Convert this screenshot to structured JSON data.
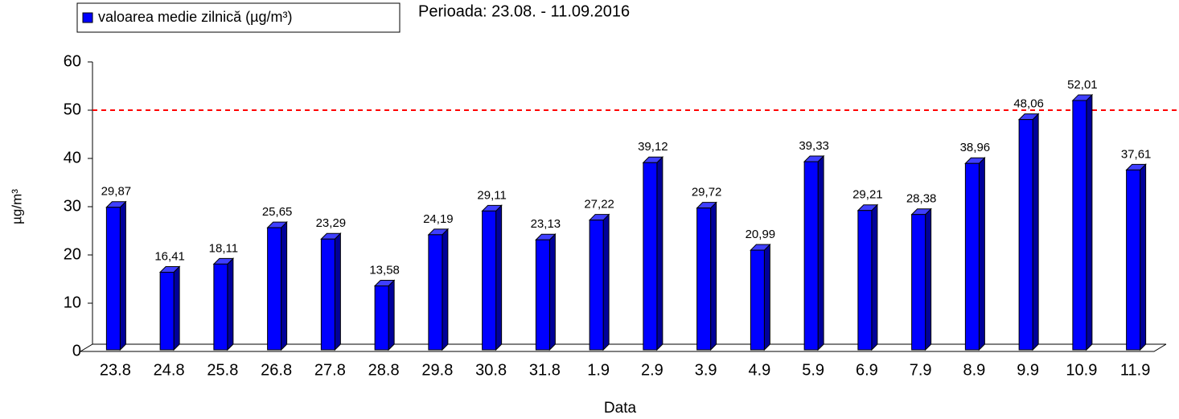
{
  "chart_data": {
    "type": "bar3d",
    "subtitle": "Perioada: 23.08. - 11.09.2016",
    "x_label": "Data",
    "y_label": "µg/m³",
    "categories": [
      "23.8",
      "24.8",
      "25.8",
      "26.8",
      "27.8",
      "28.8",
      "29.8",
      "30.8",
      "31.8",
      "1.9",
      "2.9",
      "3.9",
      "4.9",
      "5.9",
      "6.9",
      "7.9",
      "8.9",
      "9.9",
      "10.9",
      "11.9"
    ],
    "series": [
      {
        "name": "valoarea medie zilnică (µg/m³)",
        "color": "#0000ff",
        "values": [
          29.87,
          16.41,
          18.11,
          25.65,
          23.29,
          13.58,
          24.19,
          29.11,
          23.13,
          27.22,
          39.12,
          29.72,
          20.99,
          39.33,
          29.21,
          28.38,
          38.96,
          48.06,
          52.01,
          37.61
        ],
        "value_labels": [
          "29,87",
          "16,41",
          "18,11",
          "25,65",
          "23,29",
          "13,58",
          "24,19",
          "29,11",
          "23,13",
          "27,22",
          "39,12",
          "29,72",
          "20,99",
          "39,33",
          "29,21",
          "28,38",
          "38,96",
          "48,06",
          "52,01",
          "37,61"
        ]
      }
    ],
    "ylim": [
      0,
      60
    ],
    "yticks": [
      0,
      10,
      20,
      30,
      40,
      50,
      60
    ],
    "threshold": 50,
    "threshold_color": "#ff0000",
    "legend": "top-left"
  }
}
